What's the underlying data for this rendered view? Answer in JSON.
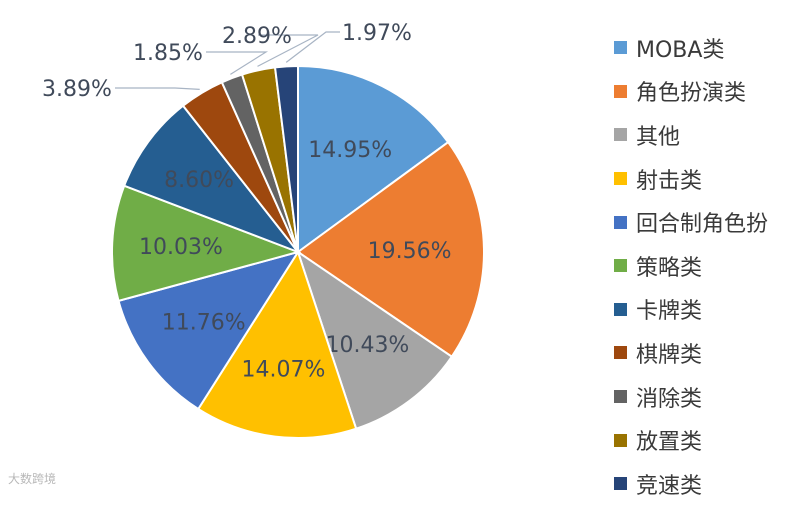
{
  "chart_data": {
    "type": "pie",
    "categories": [
      "MOBA类",
      "角色扮演类",
      "其他",
      "射击类",
      "回合制角色扮",
      "策略类",
      "卡牌类",
      "棋牌类",
      "消除类",
      "放置类",
      "竞速类"
    ],
    "values": [
      14.95,
      19.56,
      10.43,
      14.07,
      11.76,
      10.03,
      8.6,
      3.89,
      1.85,
      2.89,
      1.97
    ],
    "labels": [
      "14.95%",
      "19.56%",
      "10.43%",
      "14.07%",
      "11.76%",
      "10.03%",
      "8.60%",
      "3.89%",
      "1.85%",
      "2.89%",
      "1.97%"
    ],
    "colors": [
      "#5b9bd5",
      "#ed7d31",
      "#a5a5a5",
      "#ffc000",
      "#4472c4",
      "#70ad47",
      "#255e91",
      "#9e480e",
      "#636363",
      "#997300",
      "#264478"
    ],
    "legend_position": "right",
    "start_angle": "12 o'clock, clockwise"
  },
  "watermark": "大数跨境"
}
